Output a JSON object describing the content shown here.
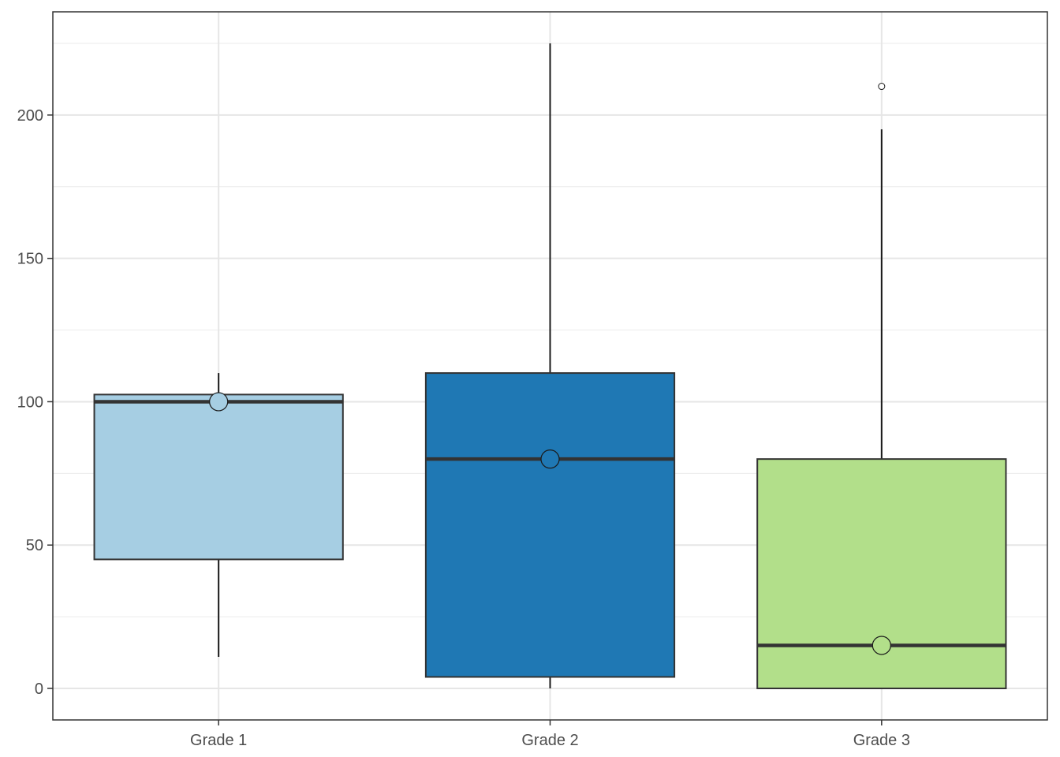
{
  "chart_data": {
    "type": "boxplot",
    "title": "",
    "xlabel": "",
    "ylabel": "",
    "categories": [
      "Grade 1",
      "Grade 2",
      "Grade 3"
    ],
    "boxes": [
      {
        "category": "Grade 1",
        "whisker_low": 11,
        "q1": 45,
        "median": 100,
        "q3": 102.5,
        "whisker_high": 110,
        "mean_point": 100,
        "outliers": [],
        "fill": "#a6cee3"
      },
      {
        "category": "Grade 2",
        "whisker_low": 0,
        "q1": 4,
        "median": 80,
        "q3": 110,
        "whisker_high": 225,
        "mean_point": 80,
        "outliers": [],
        "fill": "#1f78b4"
      },
      {
        "category": "Grade 3",
        "whisker_low": 0,
        "q1": 0,
        "median": 15,
        "q3": 80,
        "whisker_high": 195,
        "mean_point": 15,
        "outliers": [
          210
        ],
        "fill": "#b2df8a"
      }
    ],
    "ylim": [
      -11,
      236
    ],
    "yticks": [
      0,
      50,
      100,
      150,
      200
    ],
    "yticks_minor": [
      25,
      75,
      125,
      175,
      225
    ],
    "grid": true,
    "legend": "none"
  }
}
